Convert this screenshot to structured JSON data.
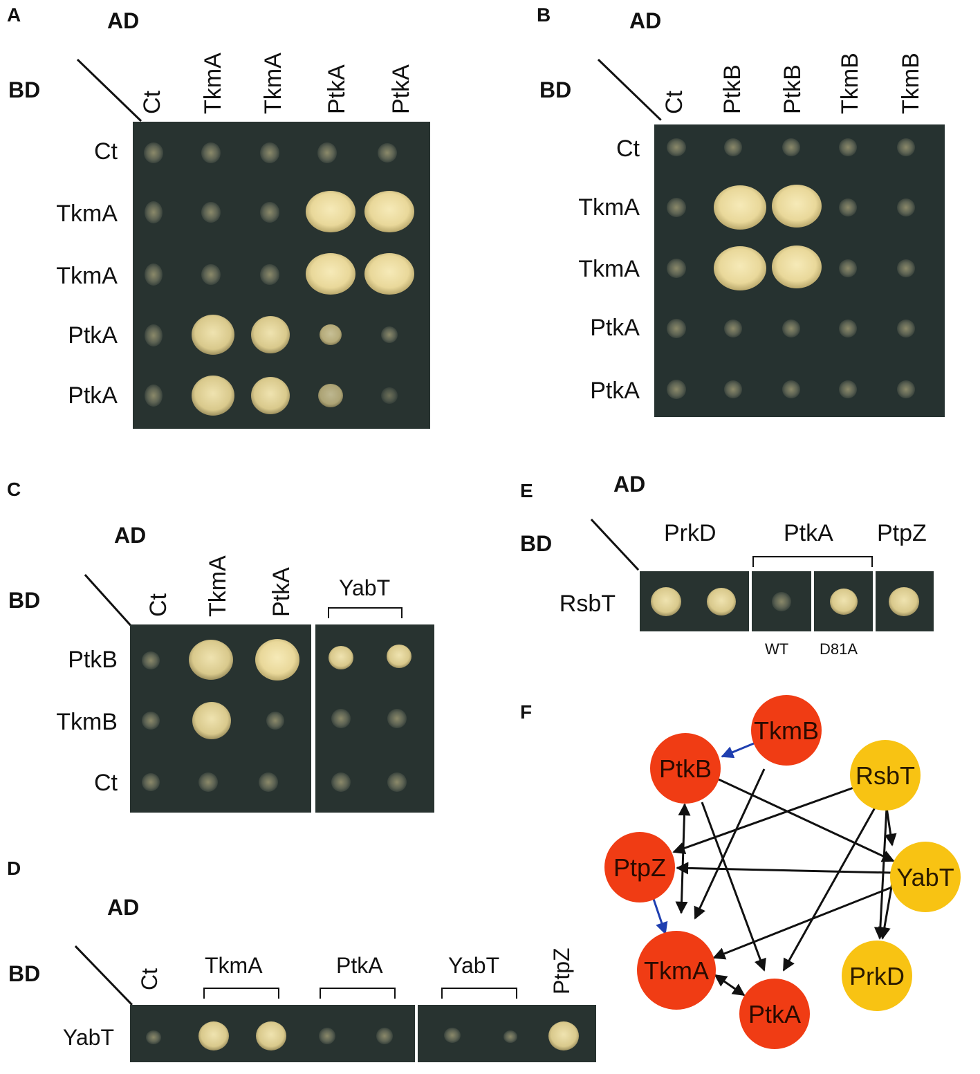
{
  "panels": {
    "A": {
      "letter": "A",
      "ad": "AD",
      "bd": "BD",
      "columns": [
        "Ct",
        "TkmA",
        "TkmA",
        "PtkA",
        "PtkA"
      ],
      "rows": [
        "Ct",
        "TkmA",
        "TkmA",
        "PtkA",
        "PtkA"
      ]
    },
    "B": {
      "letter": "B",
      "ad": "AD",
      "bd": "BD",
      "columns": [
        "Ct",
        "PtkB",
        "PtkB",
        "TkmB",
        "TkmB"
      ],
      "rows": [
        "Ct",
        "TkmA",
        "TkmA",
        "PtkA",
        "PtkA"
      ]
    },
    "C": {
      "letter": "C",
      "ad": "AD",
      "bd": "BD",
      "columns": [
        "Ct",
        "TkmA",
        "PtkA"
      ],
      "group_label": "YabT",
      "rows": [
        "PtkB",
        "TkmB",
        "Ct"
      ]
    },
    "D": {
      "letter": "D",
      "ad": "AD",
      "bd": "BD",
      "col_ct": "Ct",
      "col_ptpz": "PtpZ",
      "groups": [
        "TkmA",
        "PtkA",
        "YabT"
      ],
      "rows": [
        "YabT"
      ]
    },
    "E": {
      "letter": "E",
      "ad": "AD",
      "bd": "BD",
      "groups": [
        "PrkD",
        "PtkA",
        "PtpZ"
      ],
      "row": "RsbT",
      "sublabels": [
        "WT",
        "D81A"
      ]
    },
    "F": {
      "letter": "F",
      "colors": {
        "red": "#f03c14",
        "yellow": "#f8c313",
        "blue_edge": "#1f3fb0"
      },
      "nodes": [
        {
          "id": "TkmB",
          "label": "TkmB",
          "group": "red"
        },
        {
          "id": "PtkB",
          "label": "PtkB",
          "group": "red"
        },
        {
          "id": "RsbT",
          "label": "RsbT",
          "group": "yellow"
        },
        {
          "id": "PtpZ",
          "label": "PtpZ",
          "group": "red"
        },
        {
          "id": "YabT",
          "label": "YabT",
          "group": "yellow"
        },
        {
          "id": "TkmA",
          "label": "TkmA",
          "group": "red"
        },
        {
          "id": "PrkD",
          "label": "PrkD",
          "group": "yellow"
        },
        {
          "id": "PtkA",
          "label": "PtkA",
          "group": "red"
        }
      ]
    }
  }
}
